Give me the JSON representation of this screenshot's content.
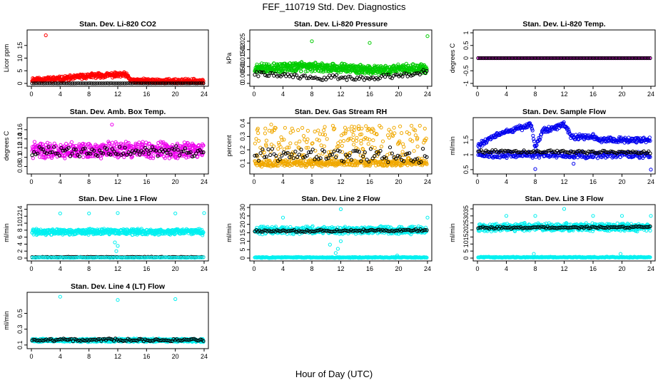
{
  "title": "FEF_110719  Std. Dev. Diagnostics",
  "xlabel": "Hour of Day (UTC)",
  "chart_data": [
    {
      "type": "scatter",
      "title": "Stan. Dev. Li-820 CO2",
      "ylabel": "Licor ppm",
      "xlim": [
        0,
        24
      ],
      "ylim": [
        0,
        20
      ],
      "xticks": [
        0,
        4,
        8,
        12,
        16,
        20,
        24
      ],
      "yticks": [
        0,
        5,
        10,
        15
      ],
      "series": [
        {
          "name": "",
          "color": "#ff0000",
          "gen": {
            "type": "noise",
            "base": [
              [
                0,
                1.5
              ],
              [
                4,
                1.8
              ],
              [
                8,
                3.0
              ],
              [
                13,
                3.5
              ],
              [
                14,
                1.0
              ],
              [
                24,
                0.8
              ]
            ],
            "spread": 1.6,
            "n": 520,
            "seed": 11
          },
          "outliers": [
            [
              2,
              19
            ]
          ]
        },
        {
          "name": "",
          "color": "#000000",
          "gen": {
            "type": "noise",
            "base": [
              [
                0,
                0.05
              ],
              [
                24,
                0.05
              ]
            ],
            "spread": 0.05,
            "n": 90,
            "seed": 12
          }
        }
      ]
    },
    {
      "type": "scatter",
      "title": "Stan. Dev. Li-820 Pressure",
      "ylabel": "kPa",
      "xlim": [
        0,
        24
      ],
      "ylim": [
        0,
        0.03
      ],
      "xticks": [
        0,
        4,
        8,
        12,
        16,
        20,
        24
      ],
      "yticks": [
        0,
        0.005,
        0.01,
        0.015,
        0.02,
        0.025
      ],
      "series": [
        {
          "name": "",
          "color": "#00cc00",
          "gen": {
            "type": "noise",
            "base": [
              [
                0,
                0.009
              ],
              [
                8,
                0.01
              ],
              [
                16,
                0.008
              ],
              [
                24,
                0.009
              ]
            ],
            "spread": 0.0045,
            "n": 650,
            "seed": 21
          },
          "outliers": [
            [
              8,
              0.025
            ],
            [
              16,
              0.024
            ],
            [
              24,
              0.028
            ]
          ]
        },
        {
          "name": "",
          "color": "#000000",
          "gen": {
            "type": "noise",
            "base": [
              [
                0,
                0.006
              ],
              [
                8,
                0.0035
              ],
              [
                16,
                0.003
              ],
              [
                24,
                0.007
              ]
            ],
            "spread": 0.0025,
            "n": 100,
            "seed": 22
          }
        }
      ]
    },
    {
      "type": "scatter",
      "title": "Stan. Dev. Li-820 Temp.",
      "ylabel": "degrees C",
      "xlim": [
        0,
        24
      ],
      "ylim": [
        -1,
        1
      ],
      "xticks": [
        0,
        4,
        8,
        12,
        16,
        20,
        24
      ],
      "yticks": [
        -1,
        -0.5,
        0,
        0.5,
        1
      ],
      "series": [
        {
          "name": "",
          "color": "#ff00ff",
          "gen": {
            "type": "noise",
            "base": [
              [
                0,
                0
              ],
              [
                24,
                0
              ]
            ],
            "spread": 0,
            "n": 150,
            "seed": 31
          }
        },
        {
          "name": "",
          "color": "#000000",
          "gen": {
            "type": "noise",
            "base": [
              [
                0,
                0
              ],
              [
                24,
                0
              ]
            ],
            "spread": 0,
            "n": 95,
            "seed": 32
          }
        }
      ]
    },
    {
      "type": "scatter",
      "title": "Stan. Dev. Amb. Box Temp.",
      "ylabel": "degrees C",
      "xlim": [
        0,
        24
      ],
      "ylim": [
        0.07,
        0.18
      ],
      "xticks": [
        0,
        4,
        8,
        12,
        16,
        20,
        24
      ],
      "yticks": [
        0.08,
        0.1,
        0.12,
        0.14,
        0.16
      ],
      "series": [
        {
          "name": "",
          "color": "#ee00ee",
          "gen": {
            "type": "noise",
            "base": [
              [
                0,
                0.115
              ],
              [
                24,
                0.115
              ]
            ],
            "spread": 0.028,
            "n": 560,
            "seed": 41
          },
          "outliers": [
            [
              11.2,
              0.171
            ]
          ]
        },
        {
          "name": "",
          "color": "#000000",
          "gen": {
            "type": "noise",
            "base": [
              [
                0,
                0.112
              ],
              [
                24,
                0.112
              ]
            ],
            "spread": 0.018,
            "n": 95,
            "seed": 42
          }
        }
      ]
    },
    {
      "type": "scatter",
      "title": "Stan. Dev. Gas Stream RH",
      "ylabel": "percent",
      "xlim": [
        0,
        24
      ],
      "ylim": [
        0.04,
        0.42
      ],
      "xticks": [
        0,
        4,
        8,
        12,
        16,
        20,
        24
      ],
      "yticks": [
        0.1,
        0.2,
        0.3,
        0.4
      ],
      "series": [
        {
          "name": "",
          "color": "#f0a800",
          "gen": {
            "type": "band",
            "lo": 0.07,
            "hi": 0.39,
            "dense": [
              0.08,
              0.12
            ],
            "n": 620,
            "seed": 51
          }
        },
        {
          "name": "",
          "color": "#000000",
          "gen": {
            "type": "noise",
            "base": [
              [
                0,
                0.16
              ],
              [
                24,
                0.16
              ]
            ],
            "spread": 0.09,
            "n": 90,
            "seed": 52
          }
        }
      ]
    },
    {
      "type": "scatter",
      "title": "Stan. Dev. Sample Flow",
      "ylabel": "ml/min",
      "xlim": [
        0,
        24
      ],
      "ylim": [
        0.45,
        2.15
      ],
      "xticks": [
        0,
        4,
        8,
        12,
        16,
        20,
        24
      ],
      "yticks": [
        0.5,
        1,
        1.5
      ],
      "series": [
        {
          "name": "",
          "color": "#0000ee",
          "gen": {
            "type": "noise",
            "base": [
              [
                0,
                1.3
              ],
              [
                3,
                1.7
              ],
              [
                7.5,
                2.0
              ],
              [
                8,
                1.2
              ],
              [
                9,
                1.8
              ],
              [
                12,
                2.0
              ],
              [
                13,
                1.6
              ],
              [
                16,
                1.6
              ],
              [
                17,
                1.5
              ],
              [
                24,
                1.5
              ]
            ],
            "spread": 0.15,
            "n": 330,
            "seed": 61
          },
          "outliers": [
            [
              8,
              0.52
            ],
            [
              24,
              0.5
            ],
            [
              13.3,
              0.7
            ]
          ]
        },
        {
          "name": "",
          "color": "#0000ee",
          "gen": {
            "type": "noise",
            "base": [
              [
                0,
                1.0
              ],
              [
                24,
                1.0
              ]
            ],
            "spread": 0.18,
            "n": 260,
            "seed": 63
          }
        },
        {
          "name": "",
          "color": "#000000",
          "gen": {
            "type": "noise",
            "base": [
              [
                0,
                1.12
              ],
              [
                24,
                1.08
              ]
            ],
            "spread": 0.08,
            "n": 110,
            "seed": 62
          }
        }
      ]
    },
    {
      "type": "scatter",
      "title": "Stan. Dev. Line 1 Flow",
      "ylabel": "ml/min",
      "xlim": [
        0,
        24
      ],
      "ylim": [
        0,
        14.5
      ],
      "xticks": [
        0,
        4,
        8,
        12,
        16,
        20,
        24
      ],
      "yticks": [
        0,
        2,
        4,
        6,
        8,
        10,
        12,
        14
      ],
      "series": [
        {
          "name": "",
          "color": "#00f0f0",
          "gen": {
            "type": "noise",
            "base": [
              [
                0,
                7.5
              ],
              [
                24,
                7.5
              ]
            ],
            "spread": 1.4,
            "n": 560,
            "seed": 71
          },
          "outliers": [
            [
              4,
              12.8
            ],
            [
              8,
              12.8
            ],
            [
              12,
              12.9
            ],
            [
              20,
              12.8
            ],
            [
              24,
              12.9
            ],
            [
              11.6,
              4.5
            ],
            [
              11.8,
              2.0
            ],
            [
              12.0,
              3.5
            ]
          ]
        },
        {
          "name": "",
          "color": "#000000",
          "gen": {
            "type": "noise",
            "base": [
              [
                0,
                0.3
              ],
              [
                24,
                0.3
              ]
            ],
            "spread": 0.15,
            "n": 100,
            "seed": 72
          }
        },
        {
          "name": "",
          "color": "#00f0f0",
          "gen": {
            "type": "noise",
            "base": [
              [
                0,
                0.15
              ],
              [
                24,
                0.15
              ]
            ],
            "spread": 0.15,
            "n": 100,
            "seed": 73
          }
        }
      ]
    },
    {
      "type": "scatter",
      "title": "Stan. Dev. Line 2 Flow",
      "ylabel": "ml/min",
      "xlim": [
        0,
        24
      ],
      "ylim": [
        0,
        30
      ],
      "xticks": [
        0,
        4,
        8,
        12,
        16,
        20,
        24
      ],
      "yticks": [
        0,
        5,
        10,
        15,
        20,
        25,
        30
      ],
      "series": [
        {
          "name": "",
          "color": "#00f0f0",
          "gen": {
            "type": "noise",
            "base": [
              [
                0,
                16.5
              ],
              [
                24,
                16.5
              ]
            ],
            "spread": 3.6,
            "n": 500,
            "seed": 81
          },
          "outliers": [
            [
              4,
              24
            ],
            [
              12,
              29
            ],
            [
              24,
              24
            ],
            [
              11.3,
              3.0
            ],
            [
              11.6,
              5.5
            ],
            [
              12,
              10
            ],
            [
              19.8,
              1.5
            ],
            [
              10.5,
              8.0
            ]
          ]
        },
        {
          "name": "",
          "color": "#000000",
          "gen": {
            "type": "noise",
            "base": [
              [
                0,
                16.0
              ],
              [
                24,
                16.5
              ]
            ],
            "spread": 1.1,
            "n": 110,
            "seed": 82
          }
        },
        {
          "name": "",
          "color": "#00f0f0",
          "gen": {
            "type": "noise",
            "base": [
              [
                0,
                0.4
              ],
              [
                24,
                0.4
              ]
            ],
            "spread": 0.5,
            "n": 260,
            "seed": 83
          }
        }
      ]
    },
    {
      "type": "scatter",
      "title": "Stan. Dev. Line 3 Flow",
      "ylabel": "ml/min",
      "xlim": [
        0,
        24
      ],
      "ylim": [
        0,
        36
      ],
      "xticks": [
        0,
        4,
        8,
        12,
        16,
        20,
        24
      ],
      "yticks": [
        0,
        5,
        10,
        15,
        20,
        25,
        30,
        35
      ],
      "series": [
        {
          "name": "",
          "color": "#00f0f0",
          "gen": {
            "type": "noise",
            "base": [
              [
                0,
                22
              ],
              [
                24,
                22
              ]
            ],
            "spread": 4.5,
            "n": 600,
            "seed": 91
          },
          "outliers": [
            [
              4,
              30
            ],
            [
              8,
              30
            ],
            [
              12,
              35
            ],
            [
              16,
              30
            ],
            [
              20,
              30
            ],
            [
              24,
              30
            ],
            [
              7.8,
              3
            ],
            [
              19.8,
              3
            ]
          ]
        },
        {
          "name": "",
          "color": "#000000",
          "gen": {
            "type": "noise",
            "base": [
              [
                0,
                21.5
              ],
              [
                24,
                22
              ]
            ],
            "spread": 1.2,
            "n": 110,
            "seed": 92
          }
        },
        {
          "name": "",
          "color": "#00f0f0",
          "gen": {
            "type": "noise",
            "base": [
              [
                0,
                0.6
              ],
              [
                24,
                0.6
              ]
            ],
            "spread": 0.6,
            "n": 260,
            "seed": 93
          }
        }
      ]
    },
    {
      "type": "scatter",
      "title": "Stan. Dev. Line 4 (LT) Flow",
      "ylabel": "ml/min",
      "xlim": [
        0,
        24
      ],
      "ylim": [
        0.09,
        0.73
      ],
      "xticks": [
        0,
        4,
        8,
        12,
        16,
        20,
        24
      ],
      "yticks": [
        0.1,
        0.3,
        0.5
      ],
      "series": [
        {
          "name": "",
          "color": "#00f0f0",
          "gen": {
            "type": "noise",
            "base": [
              [
                0,
                0.16
              ],
              [
                24,
                0.16
              ]
            ],
            "spread": 0.035,
            "n": 560,
            "seed": 101
          },
          "outliers": [
            [
              4,
              0.71
            ],
            [
              12,
              0.67
            ],
            [
              20,
              0.68
            ]
          ]
        },
        {
          "name": "",
          "color": "#000000",
          "gen": {
            "type": "noise",
            "base": [
              [
                0,
                0.165
              ],
              [
                24,
                0.165
              ]
            ],
            "spread": 0.03,
            "n": 110,
            "seed": 102
          }
        }
      ]
    }
  ]
}
